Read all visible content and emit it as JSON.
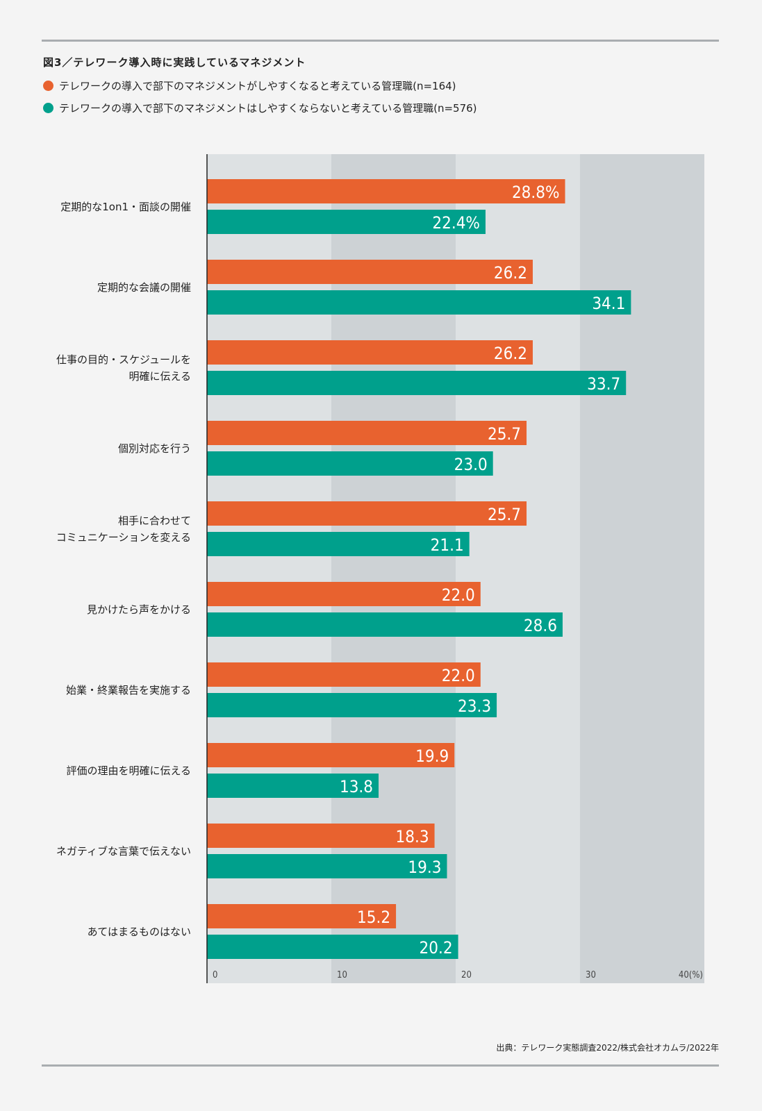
{
  "chart_data": {
    "type": "bar",
    "orientation": "horizontal",
    "title": "図3／テレワーク導入時に実践しているマネジメント",
    "categories": [
      [
        "定期的な1on1・面談の開催"
      ],
      [
        "定期的な会議の開催"
      ],
      [
        "仕事の目的・スケジュールを",
        "明確に伝える"
      ],
      [
        "個別対応を行う"
      ],
      [
        "相手に合わせて",
        "コミュニケーションを変える"
      ],
      [
        "見かけたら声をかける"
      ],
      [
        "始業・終業報告を実施する"
      ],
      [
        "評価の理由を明確に伝える"
      ],
      [
        "ネガティブな言葉で伝えない"
      ],
      [
        "あてはまるものはない"
      ]
    ],
    "series": [
      {
        "name": "テレワークの導入で部下のマネジメントがしやすくなると考えている管理職(n=164)",
        "color": "#e8622f",
        "values": [
          28.8,
          26.2,
          26.2,
          25.7,
          25.7,
          22.0,
          22.0,
          19.9,
          18.3,
          15.2
        ],
        "labels": [
          "28.8%",
          "26.2",
          "26.2",
          "25.7",
          "25.7",
          "22.0",
          "22.0",
          "19.9",
          "18.3",
          "15.2"
        ]
      },
      {
        "name": "テレワークの導入で部下のマネジメントはしやすくならないと考えている管理職(n=576)",
        "color": "#00a08c",
        "values": [
          22.4,
          34.1,
          33.7,
          23.0,
          21.1,
          28.6,
          23.3,
          13.8,
          19.3,
          20.2
        ],
        "labels": [
          "22.4%",
          "34.1",
          "33.7",
          "23.0",
          "21.1",
          "28.6",
          "23.3",
          "13.8",
          "19.3",
          "20.2"
        ]
      }
    ],
    "xlim": [
      0,
      40
    ],
    "xticks": [
      "0",
      "10",
      "20",
      "30",
      "40(%)"
    ],
    "source": "出典：テレワーク実態調査2022/株式会社オカムラ/2022年"
  }
}
